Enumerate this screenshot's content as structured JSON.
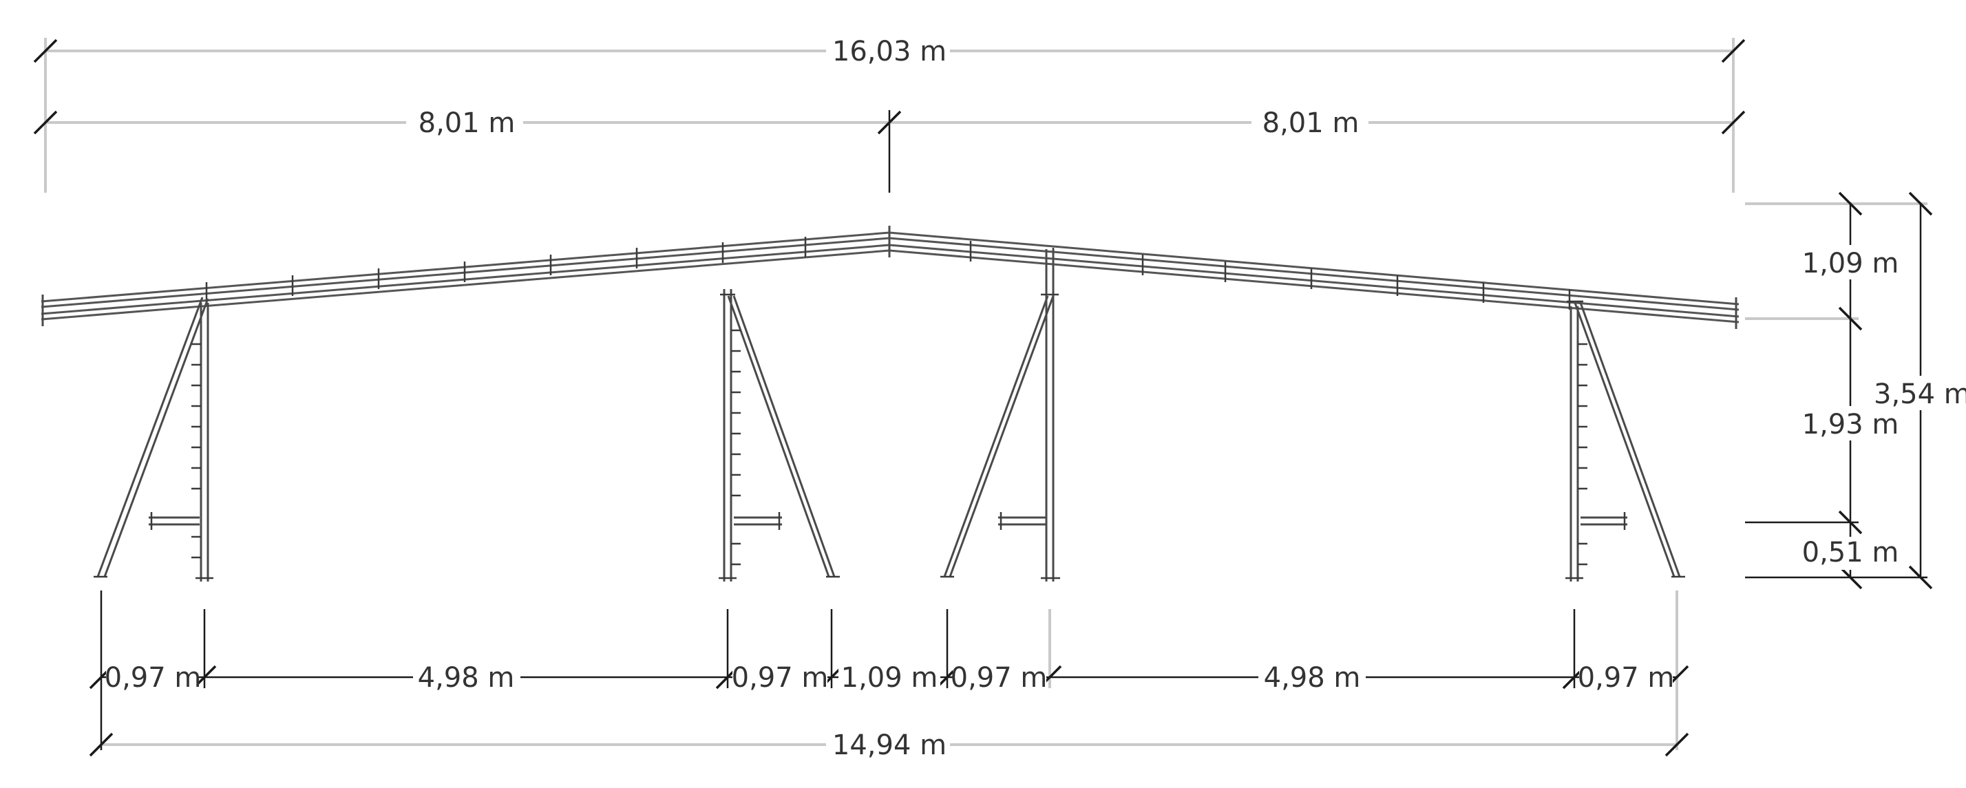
{
  "dimensions": {
    "overall_top": "16,03 m",
    "half_left": "8,01 m",
    "half_right": "8,01 m",
    "right_rise": "1,09 m",
    "right_post": "1,93 m",
    "right_total": "3,54 m",
    "right_base": "0,51 m",
    "bottom_seg_1": "0,97 m",
    "bottom_seg_2": "4,98 m",
    "bottom_seg_3": "0,97 m",
    "bottom_seg_4": "1,09 m",
    "bottom_seg_5": "0,97 m",
    "bottom_seg_6": "4,98 m",
    "bottom_seg_7": "0,97 m",
    "overall_bottom": "14,94 m"
  }
}
